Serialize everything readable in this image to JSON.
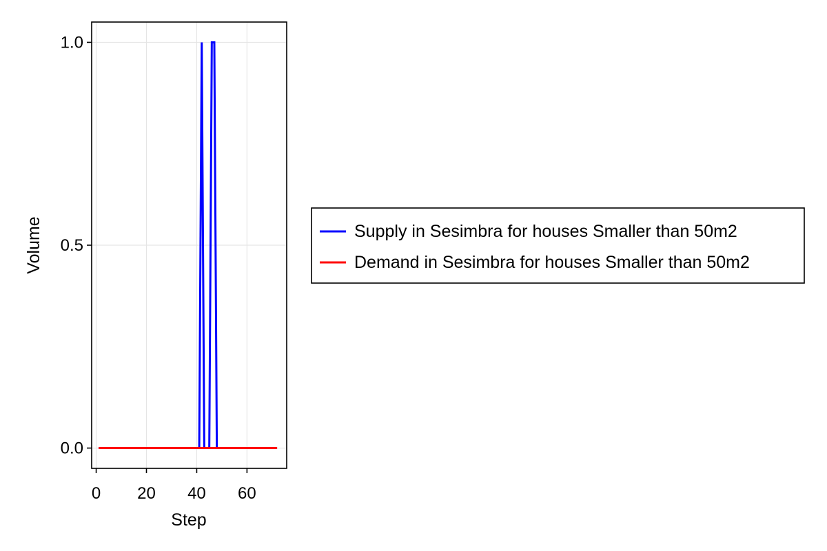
{
  "chart_data": {
    "type": "line",
    "title": "",
    "xlabel": "Step",
    "ylabel": "Volume",
    "xlim": [
      -1.8,
      75.8
    ],
    "ylim": [
      -0.05,
      1.05
    ],
    "x_ticks": [
      0,
      20,
      40,
      60
    ],
    "y_ticks": [
      0.0,
      0.5,
      1.0
    ],
    "x_tick_labels": [
      "0",
      "20",
      "40",
      "60"
    ],
    "y_tick_labels": [
      "0.0",
      "0.5",
      "1.0"
    ],
    "grid": true,
    "legend_position": "right",
    "series": [
      {
        "name": "Supply in Sesimbra for houses Smaller than 50m2",
        "color": "#0000ff",
        "x": [
          1,
          2,
          3,
          4,
          5,
          6,
          7,
          8,
          9,
          10,
          11,
          12,
          13,
          14,
          15,
          16,
          17,
          18,
          19,
          20,
          21,
          22,
          23,
          24,
          25,
          26,
          27,
          28,
          29,
          30,
          31,
          32,
          33,
          34,
          35,
          36,
          37,
          38,
          39,
          40,
          41,
          42,
          43,
          44,
          45,
          46,
          47,
          48
        ],
        "y": [
          0,
          0,
          0,
          0,
          0,
          0,
          0,
          0,
          0,
          0,
          0,
          0,
          0,
          0,
          0,
          0,
          0,
          0,
          0,
          0,
          0,
          0,
          0,
          0,
          0,
          0,
          0,
          0,
          0,
          0,
          0,
          0,
          0,
          0,
          0,
          0,
          0,
          0,
          0,
          0,
          0,
          1,
          0,
          0,
          0,
          1,
          1,
          0
        ]
      },
      {
        "name": "Demand in Sesimbra for houses Smaller than 50m2",
        "color": "#ff0000",
        "x": [
          1,
          72
        ],
        "y": [
          0,
          0
        ]
      }
    ]
  }
}
